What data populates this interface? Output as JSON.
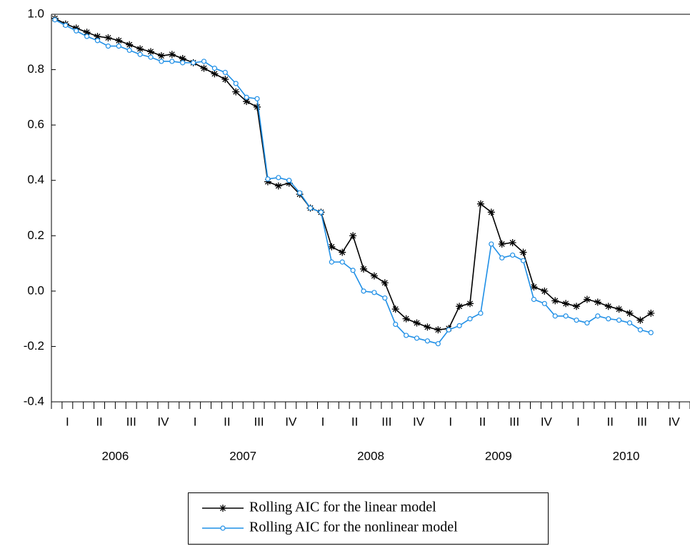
{
  "chart_data": {
    "type": "line",
    "ylim": [
      -0.4,
      1.0
    ],
    "yticks": [
      {
        "value": 1.0,
        "label": "1.0"
      },
      0.8,
      0.6,
      0.4,
      0.2,
      {
        "value": 0.0,
        "label": "0.0"
      },
      -0.2,
      -0.4
    ],
    "x_axis": {
      "quarters": [
        "I",
        "II",
        "III",
        "IV",
        "I",
        "II",
        "III",
        "IV",
        "I",
        "II",
        "III",
        "IV",
        "I",
        "II",
        "III",
        "IV",
        "I",
        "II",
        "III",
        "IV"
      ],
      "years": [
        "2006",
        "2007",
        "2008",
        "2009",
        "2010"
      ]
    },
    "legend": "bottom",
    "series": [
      {
        "name": "Rolling AIC for the linear model",
        "color": "#000000",
        "marker": "star",
        "values": [
          0.985,
          0.965,
          0.95,
          0.935,
          0.92,
          0.915,
          0.905,
          0.89,
          0.875,
          0.865,
          0.85,
          0.855,
          0.84,
          0.825,
          0.805,
          0.785,
          0.765,
          0.72,
          0.685,
          0.665,
          0.395,
          0.38,
          0.39,
          0.35,
          0.3,
          0.285,
          0.16,
          0.14,
          0.2,
          0.08,
          0.055,
          0.03,
          -0.065,
          -0.1,
          -0.115,
          -0.13,
          -0.14,
          -0.135,
          -0.055,
          -0.045,
          0.315,
          0.285,
          0.17,
          0.175,
          0.14,
          0.015,
          0.0,
          -0.035,
          -0.045,
          -0.055,
          -0.03,
          -0.04,
          -0.055,
          -0.065,
          -0.08,
          -0.105,
          -0.08
        ]
      },
      {
        "name": "Rolling AIC for the nonlinear model",
        "color": "#1f8fe6",
        "marker": "circle",
        "values": [
          0.98,
          0.96,
          0.94,
          0.92,
          0.905,
          0.885,
          0.885,
          0.87,
          0.855,
          0.845,
          0.83,
          0.83,
          0.825,
          0.825,
          0.83,
          0.805,
          0.79,
          0.75,
          0.7,
          0.695,
          0.405,
          0.41,
          0.4,
          0.355,
          0.3,
          0.285,
          0.105,
          0.105,
          0.075,
          0.0,
          -0.005,
          -0.025,
          -0.12,
          -0.16,
          -0.17,
          -0.18,
          -0.19,
          -0.14,
          -0.125,
          -0.1,
          -0.08,
          0.17,
          0.12,
          0.13,
          0.11,
          -0.03,
          -0.045,
          -0.09,
          -0.09,
          -0.105,
          -0.115,
          -0.09,
          -0.1,
          -0.105,
          -0.115,
          -0.14,
          -0.15
        ]
      }
    ]
  }
}
